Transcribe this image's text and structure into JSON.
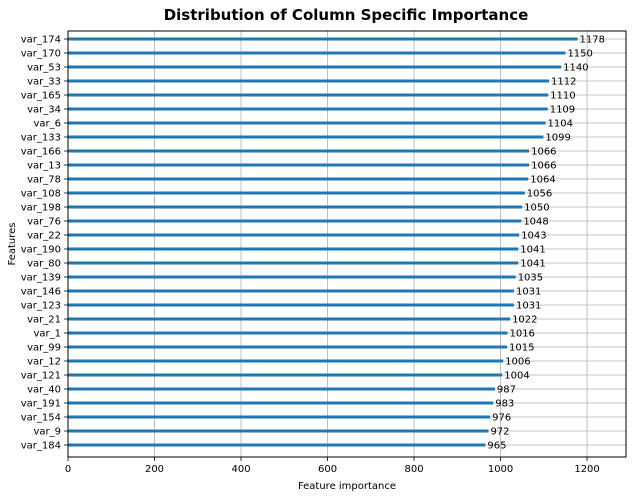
{
  "chart_data": {
    "type": "bar",
    "orientation": "horizontal",
    "title": "Distribution of Column Specific Importance",
    "xlabel": "Feature importance",
    "ylabel": "Features",
    "xlim": [
      0,
      1290
    ],
    "xticks": [
      0,
      200,
      400,
      600,
      800,
      1000,
      1200
    ],
    "grid": true,
    "bar_color": "#1f77b4",
    "categories": [
      "var_174",
      "var_170",
      "var_53",
      "var_33",
      "var_165",
      "var_34",
      "var_6",
      "var_133",
      "var_166",
      "var_13",
      "var_78",
      "var_108",
      "var_198",
      "var_76",
      "var_22",
      "var_190",
      "var_80",
      "var_139",
      "var_146",
      "var_123",
      "var_21",
      "var_1",
      "var_99",
      "var_12",
      "var_121",
      "var_40",
      "var_191",
      "var_154",
      "var_9",
      "var_184"
    ],
    "values": [
      1178,
      1150,
      1140,
      1112,
      1110,
      1109,
      1104,
      1099,
      1066,
      1066,
      1064,
      1056,
      1050,
      1048,
      1043,
      1041,
      1041,
      1035,
      1031,
      1031,
      1022,
      1016,
      1015,
      1006,
      1004,
      987,
      983,
      976,
      972,
      965
    ]
  }
}
